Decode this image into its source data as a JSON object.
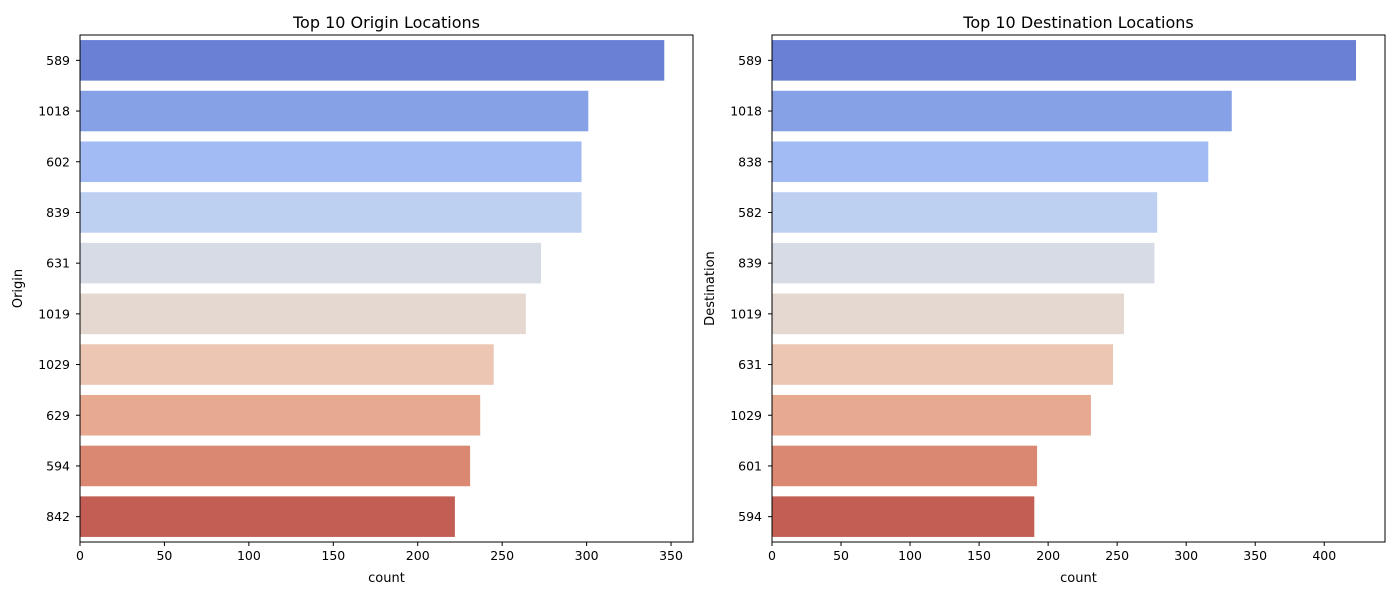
{
  "chart_data": [
    {
      "type": "bar",
      "orientation": "horizontal",
      "title": "Top 10 Origin Locations",
      "xlabel": "count",
      "ylabel": "Origin",
      "xlim": [
        0,
        363
      ],
      "xticks": [
        0,
        50,
        100,
        150,
        200,
        250,
        300,
        350
      ],
      "categories": [
        "589",
        "1018",
        "602",
        "839",
        "631",
        "1019",
        "1029",
        "629",
        "594",
        "842"
      ],
      "values": [
        346,
        301,
        297,
        297,
        273,
        264,
        245,
        237,
        231,
        222
      ],
      "colors": [
        "#6a80d4",
        "#86a1e6",
        "#a3bbf4",
        "#bed0f2",
        "#d6dbe6",
        "#e5d8d0",
        "#ecc6b3",
        "#e7a990",
        "#da8872",
        "#c35e54"
      ],
      "grid": false,
      "legend": "none"
    },
    {
      "type": "bar",
      "orientation": "horizontal",
      "title": "Top 10 Destination Locations",
      "xlabel": "count",
      "ylabel": "Destination",
      "xlim": [
        0,
        444
      ],
      "xticks": [
        0,
        50,
        100,
        150,
        200,
        250,
        300,
        350,
        400
      ],
      "categories": [
        "589",
        "1018",
        "838",
        "582",
        "839",
        "1019",
        "631",
        "1029",
        "601",
        "594"
      ],
      "values": [
        423,
        333,
        316,
        279,
        277,
        255,
        247,
        231,
        192,
        190
      ],
      "colors": [
        "#6a80d4",
        "#86a1e6",
        "#a3bbf4",
        "#bed0f2",
        "#d6dbe6",
        "#e5d8d0",
        "#ecc6b3",
        "#e7a990",
        "#da8872",
        "#c35e54"
      ],
      "grid": false,
      "legend": "none"
    }
  ]
}
